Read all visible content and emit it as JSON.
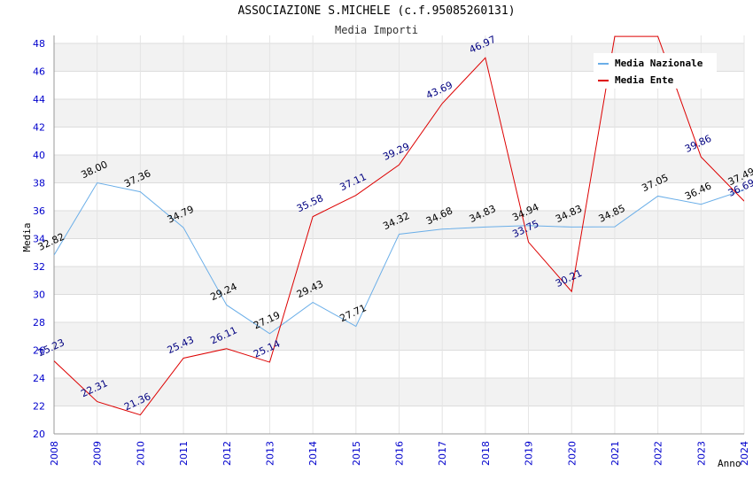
{
  "title": "ASSOCIAZIONE S.MICHELE (c.f.95085260131)",
  "subtitle": "Media Importi",
  "chart_data": {
    "type": "line",
    "title": "ASSOCIAZIONE S.MICHELE (c.f.95085260131)",
    "subtitle": "Media Importi",
    "xlabel": "Anno",
    "ylabel": "Media",
    "x": [
      "2008",
      "2009",
      "2010",
      "2011",
      "2012",
      "2013",
      "2014",
      "2015",
      "2016",
      "2017",
      "2018",
      "2019",
      "2020",
      "2021",
      "2022",
      "2023",
      "2024"
    ],
    "ylim": [
      20,
      48
    ],
    "yticks": [
      20,
      22,
      24,
      26,
      28,
      30,
      32,
      34,
      36,
      38,
      40,
      42,
      44,
      46,
      48
    ],
    "grid": true,
    "legend_position": "top-right",
    "series": [
      {
        "name": "Media Nazionale",
        "color": "#6aaee8",
        "values": [
          32.82,
          38.0,
          37.36,
          34.79,
          29.24,
          27.19,
          29.43,
          27.71,
          34.32,
          34.68,
          34.83,
          34.94,
          34.83,
          34.85,
          37.05,
          36.46,
          37.49
        ],
        "labels": [
          "32.82",
          "38.00",
          "37.36",
          "34.79",
          "29.24",
          "27.19",
          "29.43",
          "27.71",
          "34.32",
          "34.68",
          "34.83",
          "34.94",
          "34.83",
          "34.85",
          "37.05",
          "36.46",
          "37.49"
        ]
      },
      {
        "name": "Media Ente",
        "color": "#dd0000",
        "values": [
          25.23,
          22.31,
          21.36,
          25.43,
          26.11,
          25.14,
          35.58,
          37.11,
          39.29,
          43.69,
          46.97,
          33.75,
          30.21,
          48.5,
          48.5,
          39.86,
          36.69
        ],
        "labels": [
          "25.23",
          "22.31",
          "21.36",
          "25.43",
          "26.11",
          "25.14",
          "35.58",
          "37.11",
          "39.29",
          "43.69",
          "46.97",
          "33.75",
          "30.21",
          "",
          "",
          "39.86",
          "36.69"
        ]
      }
    ]
  }
}
